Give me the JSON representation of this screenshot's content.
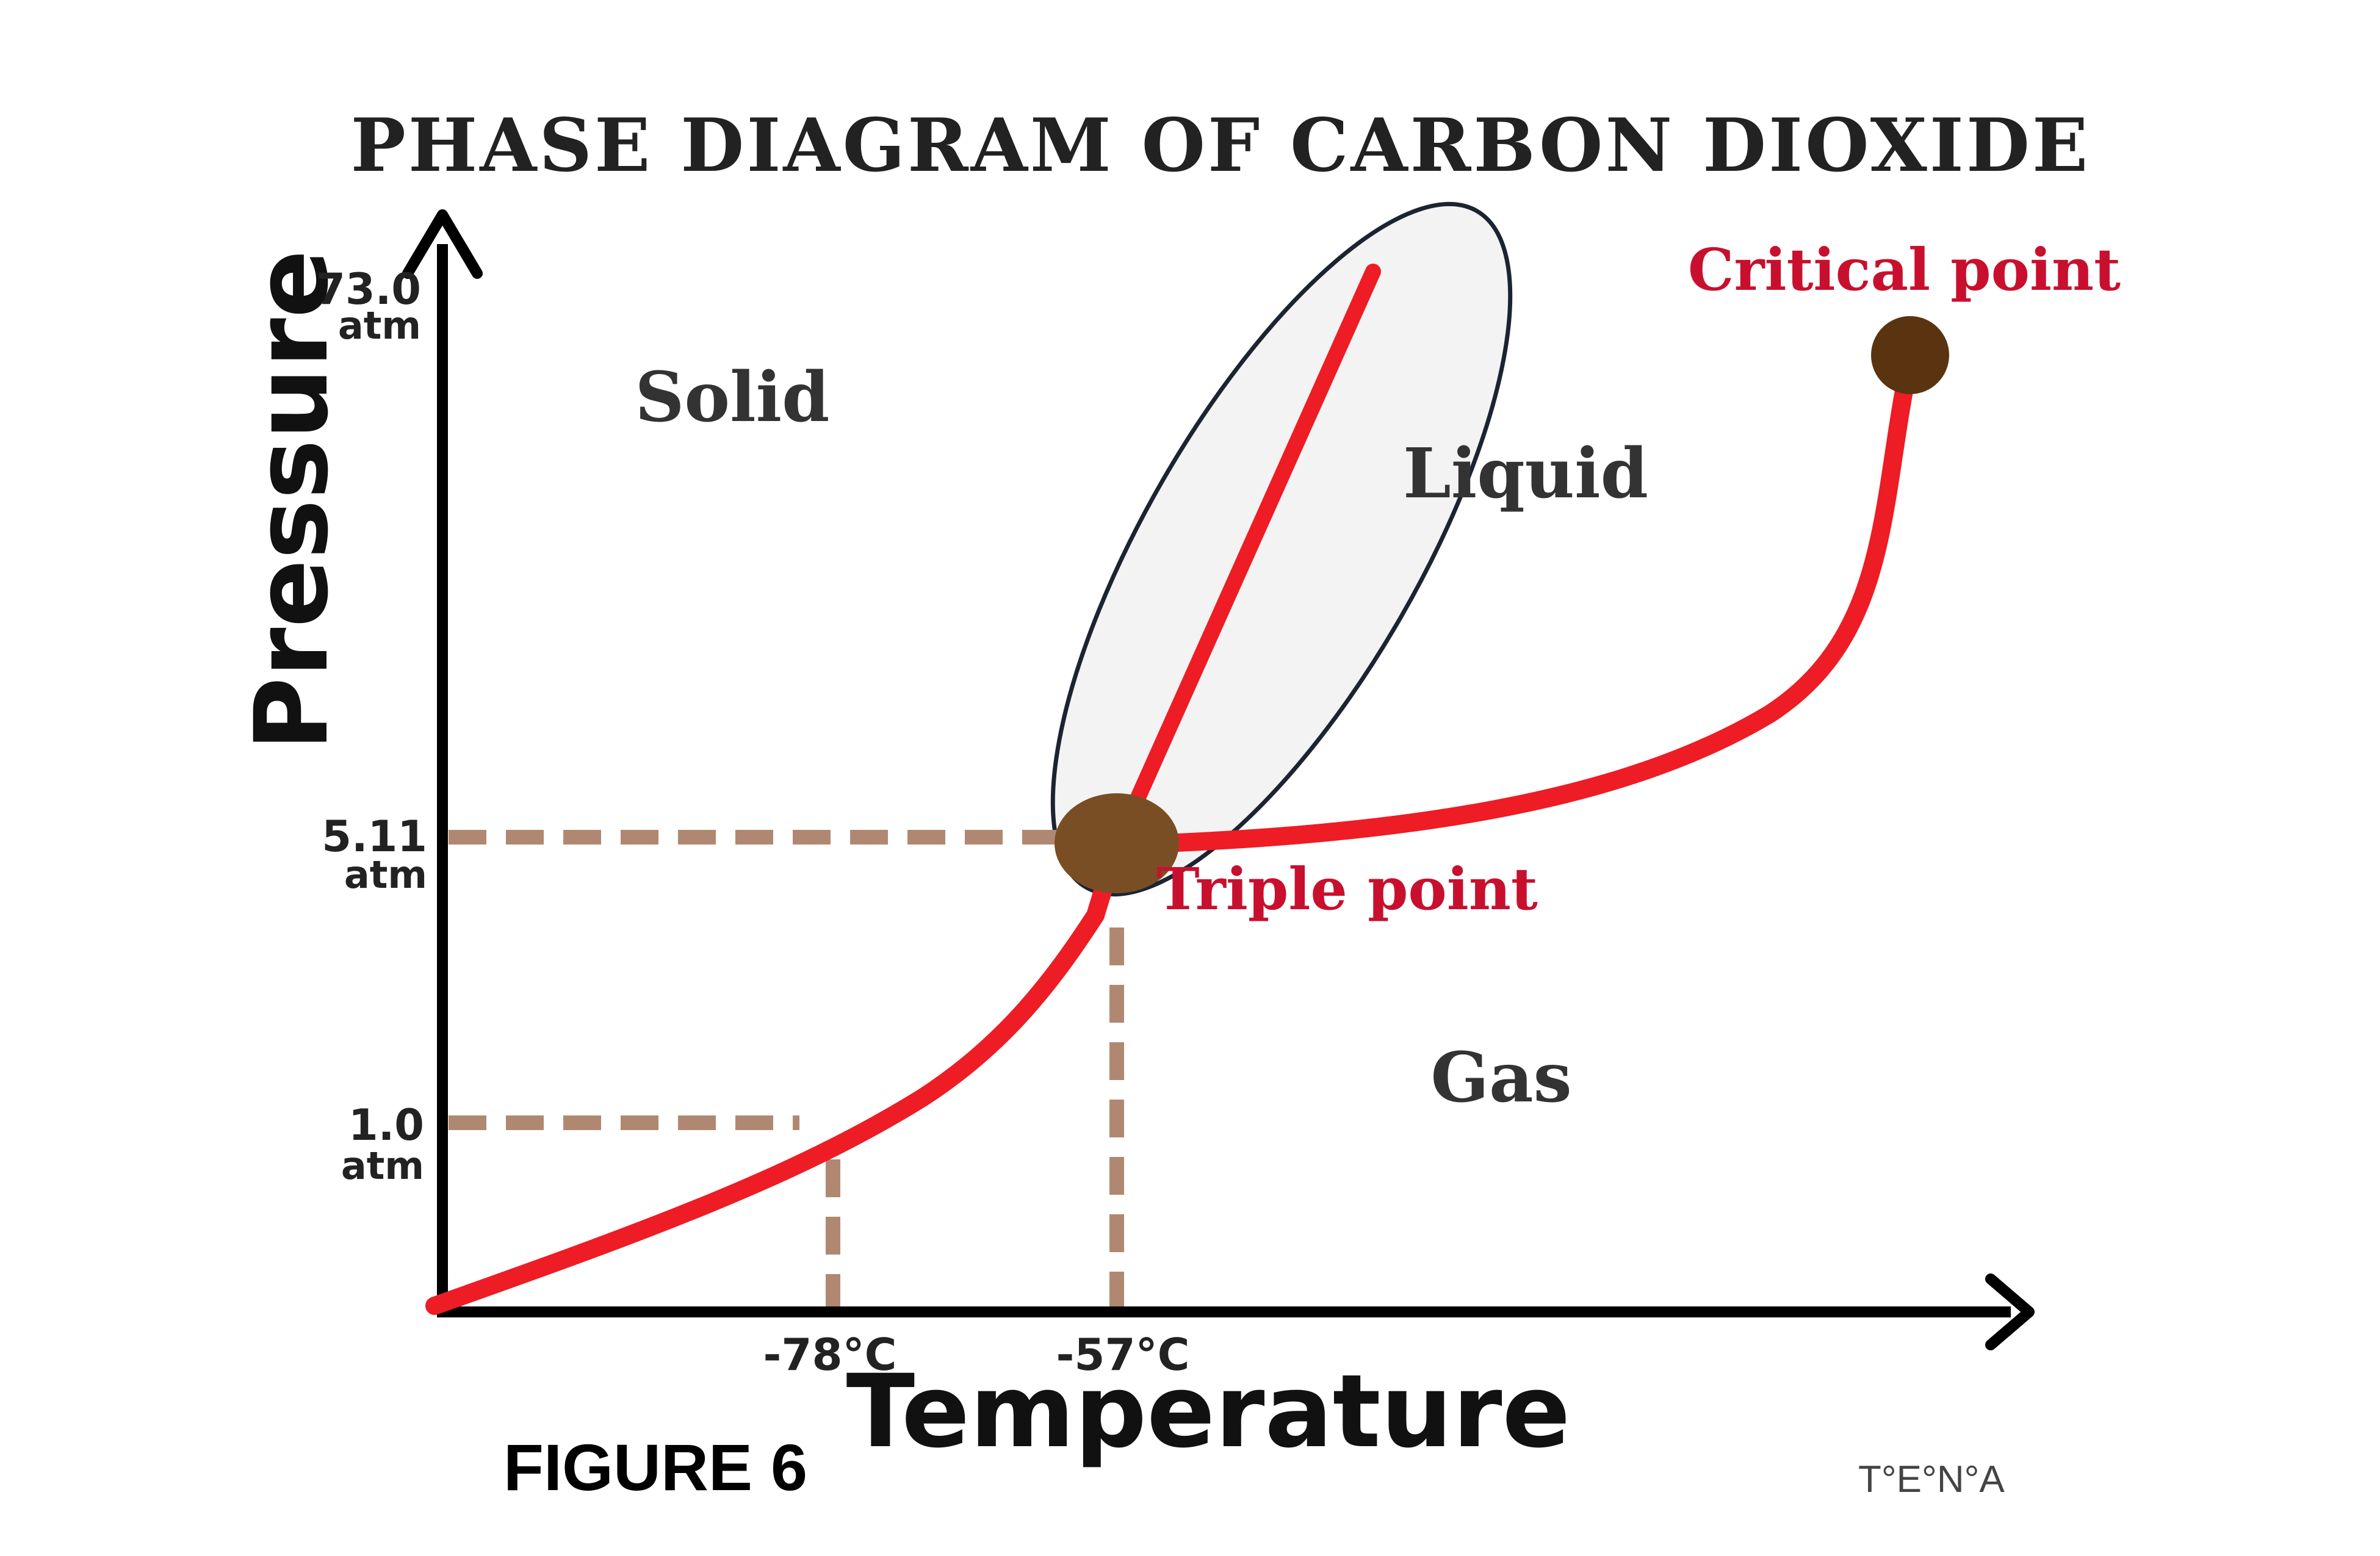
{
  "diagram": {
    "title": "PHASE DIAGRAM OF CARBON DIOXIDE",
    "y_axis_label": "Pressure",
    "x_axis_label": "Temperature",
    "pressure_ticks": [
      {
        "value": "73.0",
        "unit": "atm"
      },
      {
        "value": "5.11",
        "unit": "atm"
      },
      {
        "value": "1.0",
        "unit": "atm"
      }
    ],
    "temperature_ticks": [
      "-78°C",
      "-57°C"
    ],
    "regions": {
      "solid": "Solid",
      "liquid": "Liquid",
      "gas": "Gas"
    },
    "points": {
      "critical": "Critical point",
      "triple": "Triple point"
    },
    "caption": "FIGURE 6",
    "credit": "T°E°N°A",
    "colors": {
      "curve": "#ee1c24",
      "point": "#7a4e24",
      "critical_point": "#5a3410",
      "dashed": "#b08872",
      "highlight_fill": "#f3f3f3",
      "highlight_stroke": "#1c2433"
    }
  }
}
